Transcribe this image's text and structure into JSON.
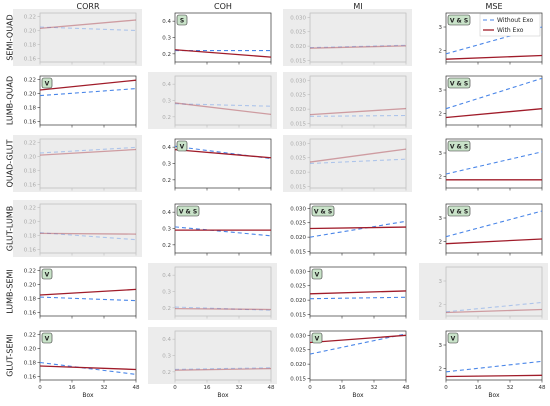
{
  "chart_data": {
    "type": "line",
    "layout": "grid",
    "column_titles": [
      "CORR",
      "COH",
      "MI",
      "MSE"
    ],
    "row_labels": [
      "SEMI-QUAD",
      "LUMB-QUAD",
      "QUAD-GLUT",
      "GLUT-LUMB",
      "LUMB-SEMI",
      "GLUT-SEMI"
    ],
    "xlabel": "Box",
    "x_ticks": [
      0,
      16,
      32,
      48
    ],
    "x_range": [
      0,
      48
    ],
    "series_style": [
      {
        "name": "Without Exo",
        "color": "#4a86e8",
        "dash": "4,3"
      },
      {
        "name": "With Exo",
        "color": "#a01c2a",
        "dash": ""
      }
    ],
    "legend": {
      "position": "top-right",
      "panel": "SEMI-QUAD/MSE"
    },
    "greyed_background": "#ececec",
    "columns": [
      {
        "title": "CORR",
        "ylim": [
          0.155,
          0.225
        ],
        "yticks": [
          0.16,
          0.18,
          0.2,
          0.22
        ],
        "yticklabels": [
          "0.16",
          "0.18",
          "0.20",
          "0.22"
        ]
      },
      {
        "title": "COH",
        "ylim": [
          0.15,
          0.45
        ],
        "yticks": [
          0.2,
          0.3,
          0.4
        ],
        "yticklabels": [
          "0.2",
          "0.3",
          "0.4"
        ]
      },
      {
        "title": "MI",
        "ylim": [
          0.0145,
          0.0315
        ],
        "yticks": [
          0.015,
          0.02,
          0.025,
          0.03
        ],
        "yticklabels": [
          "0.015",
          "0.020",
          "0.025",
          "0.030"
        ]
      },
      {
        "title": "MSE",
        "ylim": [
          1.5,
          3.6
        ],
        "yticks": [
          2,
          3
        ],
        "yticklabels": [
          "2",
          "3"
        ]
      }
    ],
    "panels": [
      [
        {
          "significant": false,
          "badge": "",
          "without_exo": [
            0.205,
            0.2
          ],
          "with_exo": [
            0.203,
            0.215
          ]
        },
        {
          "significant": true,
          "badge": "S",
          "without_exo": [
            0.22,
            0.22
          ],
          "with_exo": [
            0.225,
            0.18
          ]
        },
        {
          "significant": false,
          "badge": "",
          "without_exo": [
            0.0195,
            0.0203
          ],
          "with_exo": [
            0.0193,
            0.0201
          ]
        },
        {
          "significant": true,
          "badge": "V & S",
          "without_exo": [
            1.85,
            3.0
          ],
          "with_exo": [
            1.62,
            1.78
          ]
        }
      ],
      [
        {
          "significant": true,
          "badge": "V",
          "without_exo": [
            0.197,
            0.207
          ],
          "with_exo": [
            0.205,
            0.219
          ]
        },
        {
          "significant": false,
          "badge": "",
          "without_exo": [
            0.28,
            0.265
          ],
          "with_exo": [
            0.285,
            0.215
          ]
        },
        {
          "significant": false,
          "badge": "",
          "without_exo": [
            0.0175,
            0.0178
          ],
          "with_exo": [
            0.0181,
            0.0202
          ]
        },
        {
          "significant": true,
          "badge": "V & S",
          "without_exo": [
            2.2,
            3.5
          ],
          "with_exo": [
            1.82,
            2.2
          ]
        }
      ],
      [
        {
          "significant": false,
          "badge": "",
          "without_exo": [
            0.205,
            0.213
          ],
          "with_exo": [
            0.202,
            0.21
          ]
        },
        {
          "significant": true,
          "badge": "V",
          "without_exo": [
            0.405,
            0.33
          ],
          "with_exo": [
            0.385,
            0.335
          ]
        },
        {
          "significant": false,
          "badge": "",
          "without_exo": [
            0.023,
            0.0245
          ],
          "with_exo": [
            0.0235,
            0.028
          ]
        },
        {
          "significant": true,
          "badge": "V & S",
          "without_exo": [
            2.1,
            3.05
          ],
          "with_exo": [
            1.85,
            1.85
          ]
        }
      ],
      [
        {
          "significant": false,
          "badge": "",
          "without_exo": [
            0.184,
            0.174
          ],
          "with_exo": [
            0.183,
            0.182
          ]
        },
        {
          "significant": true,
          "badge": "V & S",
          "without_exo": [
            0.31,
            0.255
          ],
          "with_exo": [
            0.29,
            0.29
          ]
        },
        {
          "significant": true,
          "badge": "V & S",
          "without_exo": [
            0.02,
            0.0255
          ],
          "with_exo": [
            0.023,
            0.0235
          ]
        },
        {
          "significant": true,
          "badge": "V & S",
          "without_exo": [
            2.2,
            3.3
          ],
          "with_exo": [
            1.9,
            2.1
          ]
        }
      ],
      [
        {
          "significant": true,
          "badge": "V",
          "without_exo": [
            0.182,
            0.177
          ],
          "with_exo": [
            0.185,
            0.193
          ]
        },
        {
          "significant": false,
          "badge": "",
          "without_exo": [
            0.205,
            0.185
          ],
          "with_exo": [
            0.195,
            0.19
          ]
        },
        {
          "significant": true,
          "badge": "V",
          "without_exo": [
            0.0205,
            0.021
          ],
          "with_exo": [
            0.0222,
            0.0232
          ]
        },
        {
          "significant": false,
          "badge": "",
          "without_exo": [
            1.68,
            2.08
          ],
          "with_exo": [
            1.65,
            1.78
          ]
        }
      ],
      [
        {
          "significant": true,
          "badge": "V",
          "without_exo": [
            0.18,
            0.163
          ],
          "with_exo": [
            0.175,
            0.17
          ]
        },
        {
          "significant": false,
          "badge": "",
          "without_exo": [
            0.215,
            0.225
          ],
          "with_exo": [
            0.21,
            0.22
          ]
        },
        {
          "significant": true,
          "badge": "V",
          "without_exo": [
            0.0235,
            0.0305
          ],
          "with_exo": [
            0.0275,
            0.03
          ]
        },
        {
          "significant": true,
          "badge": "V",
          "without_exo": [
            1.85,
            2.3
          ],
          "with_exo": [
            1.65,
            1.7
          ]
        }
      ]
    ]
  }
}
